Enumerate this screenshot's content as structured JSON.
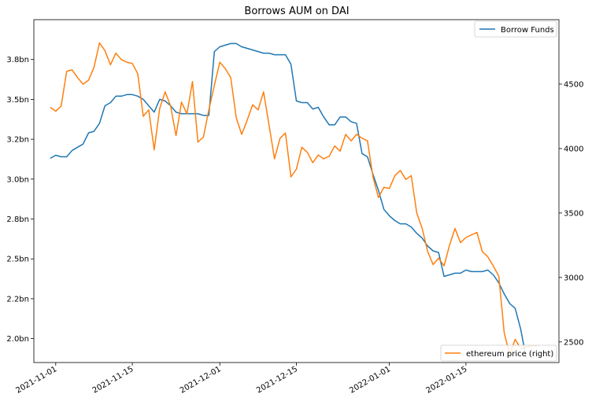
{
  "chart_data": {
    "type": "line",
    "title": "Borrows AUM on DAI",
    "x_axis": {
      "type": "date",
      "range": [
        "2021-10-28",
        "2022-02-01"
      ],
      "ticks": [
        {
          "date": "2021-11-01",
          "label": "2021-11-01"
        },
        {
          "date": "2021-11-15",
          "label": "2021-11-15"
        },
        {
          "date": "2021-12-01",
          "label": "2021-12-01"
        },
        {
          "date": "2021-12-15",
          "label": "2021-12-15"
        },
        {
          "date": "2022-01-01",
          "label": "2022-01-01"
        },
        {
          "date": "2022-01-15",
          "label": "2022-01-15"
        }
      ]
    },
    "y_left": {
      "range": [
        1.85,
        4.0
      ],
      "ticks": [
        {
          "value": 2.0,
          "label": "2.0bn"
        },
        {
          "value": 2.25,
          "label": "2.2bn"
        },
        {
          "value": 2.5,
          "label": "2.5bn"
        },
        {
          "value": 2.75,
          "label": "2.8bn"
        },
        {
          "value": 3.0,
          "label": "3.0bn"
        },
        {
          "value": 3.25,
          "label": "3.2bn"
        },
        {
          "value": 3.5,
          "label": "3.5bn"
        },
        {
          "value": 3.75,
          "label": "3.8bn"
        }
      ]
    },
    "y_right": {
      "range": [
        2340,
        5000
      ],
      "ticks": [
        {
          "value": 2500,
          "label": "2500"
        },
        {
          "value": 3000,
          "label": "3000"
        },
        {
          "value": 3500,
          "label": "3500"
        },
        {
          "value": 4000,
          "label": "4000"
        },
        {
          "value": 4500,
          "label": "4500"
        }
      ]
    },
    "grid": false,
    "legends": [
      {
        "placement": "top-right",
        "entries": [
          {
            "series": "borrow",
            "label": "Borrow Funds"
          }
        ]
      },
      {
        "placement": "bottom-right",
        "entries": [
          {
            "series": "eth",
            "label": "ethereum price (right)"
          }
        ]
      }
    ],
    "series": [
      {
        "key": "borrow",
        "name": "Borrow Funds",
        "axis": "left",
        "color": "#1f77b4",
        "x": [
          "2021-10-31",
          "2021-11-01",
          "2021-11-02",
          "2021-11-03",
          "2021-11-04",
          "2021-11-05",
          "2021-11-06",
          "2021-11-07",
          "2021-11-08",
          "2021-11-09",
          "2021-11-10",
          "2021-11-11",
          "2021-11-12",
          "2021-11-13",
          "2021-11-14",
          "2021-11-15",
          "2021-11-16",
          "2021-11-17",
          "2021-11-18",
          "2021-11-19",
          "2021-11-20",
          "2021-11-21",
          "2021-11-22",
          "2021-11-23",
          "2021-11-24",
          "2021-11-25",
          "2021-11-26",
          "2021-11-27",
          "2021-11-28",
          "2021-11-29",
          "2021-11-30",
          "2021-12-01",
          "2021-12-02",
          "2021-12-03",
          "2021-12-04",
          "2021-12-05",
          "2021-12-06",
          "2021-12-07",
          "2021-12-08",
          "2021-12-09",
          "2021-12-10",
          "2021-12-11",
          "2021-12-12",
          "2021-12-13",
          "2021-12-14",
          "2021-12-15",
          "2021-12-16",
          "2021-12-17",
          "2021-12-18",
          "2021-12-19",
          "2021-12-20",
          "2021-12-21",
          "2021-12-22",
          "2021-12-23",
          "2021-12-24",
          "2021-12-25",
          "2021-12-26",
          "2021-12-27",
          "2021-12-28",
          "2021-12-29",
          "2021-12-30",
          "2021-12-31",
          "2022-01-01",
          "2022-01-02",
          "2022-01-03",
          "2022-01-04",
          "2022-01-05",
          "2022-01-06",
          "2022-01-07",
          "2022-01-08",
          "2022-01-09",
          "2022-01-10",
          "2022-01-11",
          "2022-01-12",
          "2022-01-13",
          "2022-01-14",
          "2022-01-15",
          "2022-01-16",
          "2022-01-17",
          "2022-01-18",
          "2022-01-19",
          "2022-01-20",
          "2022-01-21",
          "2022-01-22",
          "2022-01-23",
          "2022-01-24",
          "2022-01-25",
          "2022-01-26"
        ],
        "y": [
          3.13,
          3.15,
          3.14,
          3.14,
          3.18,
          3.2,
          3.22,
          3.29,
          3.3,
          3.35,
          3.46,
          3.48,
          3.52,
          3.52,
          3.53,
          3.53,
          3.52,
          3.5,
          3.46,
          3.42,
          3.5,
          3.49,
          3.46,
          3.42,
          3.41,
          3.41,
          3.41,
          3.41,
          3.4,
          3.4,
          3.8,
          3.83,
          3.84,
          3.85,
          3.85,
          3.83,
          3.82,
          3.81,
          3.8,
          3.79,
          3.79,
          3.78,
          3.78,
          3.78,
          3.72,
          3.49,
          3.48,
          3.48,
          3.44,
          3.45,
          3.39,
          3.34,
          3.34,
          3.39,
          3.39,
          3.36,
          3.35,
          3.16,
          3.14,
          3.03,
          2.93,
          2.81,
          2.77,
          2.74,
          2.72,
          2.72,
          2.7,
          2.66,
          2.63,
          2.58,
          2.55,
          2.54,
          2.39,
          2.4,
          2.41,
          2.41,
          2.43,
          2.42,
          2.42,
          2.42,
          2.43,
          2.4,
          2.35,
          2.28,
          2.22,
          2.19,
          2.06,
          1.88
        ]
      },
      {
        "key": "eth",
        "name": "ethereum price (right)",
        "axis": "right",
        "color": "#ff7f0e",
        "x": [
          "2021-10-31",
          "2021-11-01",
          "2021-11-02",
          "2021-11-03",
          "2021-11-04",
          "2021-11-05",
          "2021-11-06",
          "2021-11-07",
          "2021-11-08",
          "2021-11-09",
          "2021-11-10",
          "2021-11-11",
          "2021-11-12",
          "2021-11-13",
          "2021-11-14",
          "2021-11-15",
          "2021-11-16",
          "2021-11-17",
          "2021-11-18",
          "2021-11-19",
          "2021-11-20",
          "2021-11-21",
          "2021-11-22",
          "2021-11-23",
          "2021-11-24",
          "2021-11-25",
          "2021-11-26",
          "2021-11-27",
          "2021-11-28",
          "2021-11-29",
          "2021-11-30",
          "2021-12-01",
          "2021-12-02",
          "2021-12-03",
          "2021-12-04",
          "2021-12-05",
          "2021-12-06",
          "2021-12-07",
          "2021-12-08",
          "2021-12-09",
          "2021-12-10",
          "2021-12-11",
          "2021-12-12",
          "2021-12-13",
          "2021-12-14",
          "2021-12-15",
          "2021-12-16",
          "2021-12-17",
          "2021-12-18",
          "2021-12-19",
          "2021-12-20",
          "2021-12-21",
          "2021-12-22",
          "2021-12-23",
          "2021-12-24",
          "2021-12-25",
          "2021-12-26",
          "2021-12-27",
          "2021-12-28",
          "2021-12-29",
          "2021-12-30",
          "2021-12-31",
          "2022-01-01",
          "2022-01-02",
          "2022-01-03",
          "2022-01-04",
          "2022-01-05",
          "2022-01-06",
          "2022-01-07",
          "2022-01-08",
          "2022-01-09",
          "2022-01-10",
          "2022-01-11",
          "2022-01-12",
          "2022-01-13",
          "2022-01-14",
          "2022-01-15",
          "2022-01-16",
          "2022-01-17",
          "2022-01-18",
          "2022-01-19",
          "2022-01-20",
          "2022-01-21",
          "2022-01-22",
          "2022-01-23",
          "2022-01-24",
          "2022-01-25",
          "2022-01-26",
          "2022-01-27",
          "2022-01-28"
        ],
        "y": [
          4320,
          4290,
          4330,
          4600,
          4610,
          4550,
          4500,
          4530,
          4630,
          4820,
          4760,
          4650,
          4740,
          4690,
          4670,
          4660,
          4580,
          4250,
          4300,
          3990,
          4310,
          4440,
          4330,
          4100,
          4360,
          4270,
          4520,
          4050,
          4090,
          4300,
          4490,
          4670,
          4620,
          4550,
          4240,
          4110,
          4220,
          4340,
          4300,
          4440,
          4180,
          3920,
          4080,
          4120,
          3780,
          3840,
          4010,
          3970,
          3890,
          3950,
          3920,
          3940,
          4020,
          3980,
          4110,
          4060,
          4110,
          4080,
          4060,
          3780,
          3620,
          3700,
          3690,
          3790,
          3830,
          3760,
          3790,
          3500,
          3380,
          3200,
          3100,
          3150,
          3090,
          3250,
          3380,
          3270,
          3310,
          3330,
          3350,
          3200,
          3160,
          3090,
          3010,
          2570,
          2400,
          2520,
          2450,
          2460,
          2470,
          2470
        ]
      }
    ]
  }
}
